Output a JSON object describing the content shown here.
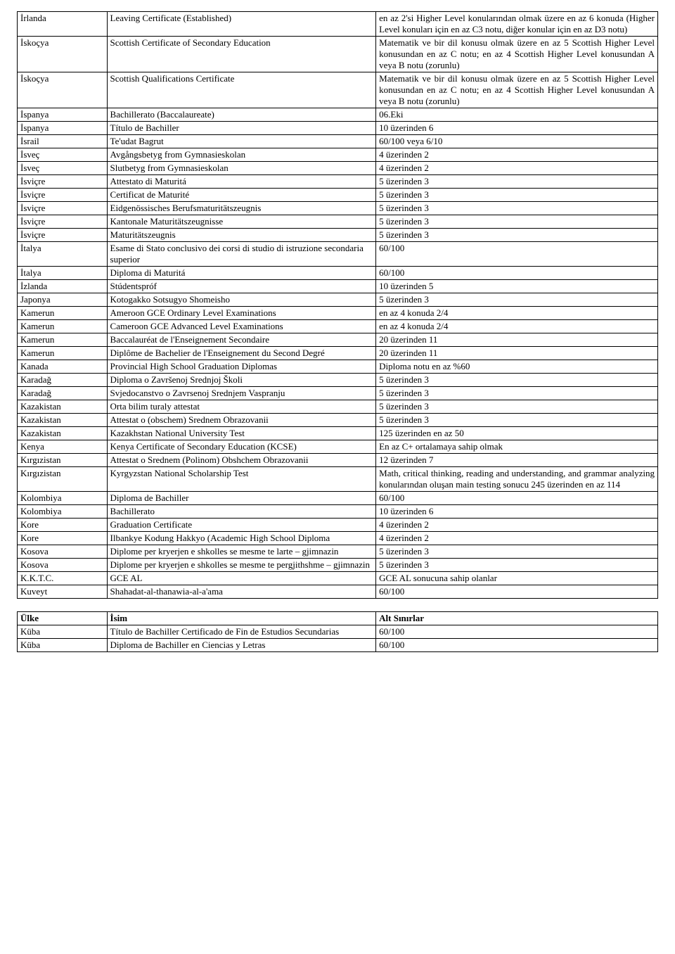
{
  "table1": {
    "rows": [
      {
        "country": "İrlanda",
        "name": "Leaving Certificate (Established)",
        "req": "en az 2'si Higher Level konularından olmak üzere en az 6 konuda (Higher Level konuları için en az C3 notu, diğer konular için en az D3 notu)",
        "just": true
      },
      {
        "country": "İskoçya",
        "name": "Scottish Certificate of Secondary Education",
        "req": "Matematik ve bir dil konusu olmak üzere en az 5 Scottish Higher Level konusundan en az C notu; en az 4 Scottish Higher Level konusundan A veya B notu (zorunlu)",
        "just": true
      },
      {
        "country": "İskoçya",
        "name": "Scottish Qualifications Certificate",
        "req": "Matematik ve bir dil konusu olmak üzere en az 5 Scottish Higher Level konusundan en az C notu; en az 4 Scottish Higher Level konusundan A veya B notu (zorunlu)",
        "just": true
      },
      {
        "country": "İspanya",
        "name": "Bachillerato (Baccalaureate)",
        "req": "06.Eki"
      },
      {
        "country": "İspanya",
        "name": "Título de Bachiller",
        "req": "10 üzerinden 6"
      },
      {
        "country": "İsrail",
        "name": "Te'udat Bagrut",
        "req": "60/100 veya 6/10"
      },
      {
        "country": "İsveç",
        "name": "Avgångsbetyg from Gymnasieskolan",
        "req": "4 üzerinden 2"
      },
      {
        "country": "İsveç",
        "name": "Slutbetyg from Gymnasieskolan",
        "req": "4 üzerinden 2"
      },
      {
        "country": "İsviçre",
        "name": "Attestato di Maturitá",
        "req": "5 üzerinden 3"
      },
      {
        "country": "İsviçre",
        "name": "Certificat de Maturité",
        "req": "5 üzerinden 3"
      },
      {
        "country": "İsviçre",
        "name": "Eidgenössisches Berufsmaturitätszeugnis",
        "req": "5 üzerinden 3"
      },
      {
        "country": "İsviçre",
        "name": "Kantonale Maturitätszeugnisse",
        "req": "5 üzerinden 3"
      },
      {
        "country": "İsviçre",
        "name": "Maturitätszeugnis",
        "req": "5 üzerinden 3"
      },
      {
        "country": "İtalya",
        "name": "Esame di Stato conclusivo dei corsi di studio di istruzione secondaria superior",
        "req": "60/100"
      },
      {
        "country": "İtalya",
        "name": "Diploma di Maturitá",
        "req": "60/100"
      },
      {
        "country": "İzlanda",
        "name": "Stúdentspróf",
        "req": "10 üzerinden 5"
      },
      {
        "country": "Japonya",
        "name": "Kotogakko Sotsugyo Shomeisho",
        "req": "5 üzerinden 3"
      },
      {
        "country": "Kamerun",
        "name": "Ameroon GCE Ordinary Level Examinations",
        "req": "en az 4 konuda 2/4"
      },
      {
        "country": "Kamerun",
        "name": "Cameroon GCE Advanced Level Examinations",
        "req": "en az 4 konuda 2/4"
      },
      {
        "country": "Kamerun",
        "name": "Baccalauréat de l'Enseignement Secondaire",
        "req": "20 üzerinden 11"
      },
      {
        "country": "Kamerun",
        "name": "Diplôme de Bachelier de l'Enseignement du Second Degré",
        "req": "20 üzerinden 11"
      },
      {
        "country": "Kanada",
        "name": "Provincial High School Graduation Diplomas",
        "req": "Diploma notu en az %60"
      },
      {
        "country": "Karadağ",
        "name": "Diploma o Završenoj Srednjoj Školi",
        "req": "5 üzerinden 3"
      },
      {
        "country": "Karadağ",
        "name": "Svjedocanstvo o Zavrsenoj Srednjem Vaspranju",
        "req": "5 üzerinden 3"
      },
      {
        "country": "Kazakistan",
        "name": "Orta bilim turaly attestat",
        "req": "5 üzerinden 3"
      },
      {
        "country": "Kazakistan",
        "name": "Attestat o (obschem) Srednem Obrazovanii",
        "req": "5 üzerinden 3"
      },
      {
        "country": "Kazakistan",
        "name": "Kazakhstan National University Test",
        "req": "125 üzerinden en az 50"
      },
      {
        "country": "Kenya",
        "name": "Kenya Certificate of Secondary Education (KCSE)",
        "req": "En az C+ ortalamaya sahip olmak"
      },
      {
        "country": "Kırgızistan",
        "name": "Attestat o Srednem (Polinom) Obshchem Obrazovanii",
        "req": "12 üzerinden 7"
      },
      {
        "country": "Kırgızistan",
        "name": "Kyrgyzstan National Scholarship Test",
        "req": " Math, critical thinking, reading and understanding, and grammar analyzing konularından oluşan main testing sonucu 245 üzerinden en az 114",
        "just": true
      },
      {
        "country": "Kolombiya",
        "name": "Diploma de Bachiller",
        "req": "60/100"
      },
      {
        "country": "Kolombiya",
        "name": "Bachillerato",
        "req": "10 üzerinden 6"
      },
      {
        "country": "Kore",
        "name": "Graduation Certificate",
        "req": "4 üzerinden 2"
      },
      {
        "country": "Kore",
        "name": "Ilbankye Kodung Hakkyo (Academic High School Diploma",
        "req": "4 üzerinden 2"
      },
      {
        "country": "Kosova",
        "name": "Diplome per kryerjen e shkolles se mesme te larte – gjimnazin",
        "req": "5 üzerinden 3"
      },
      {
        "country": "Kosova",
        "name": "Diplome per kryerjen e shkolles se mesme te pergjithshme – gjimnazin",
        "req": "5 üzerinden 3"
      },
      {
        "country": "K.K.T.C.",
        "name": "GCE AL",
        "req": "GCE AL sonucuna sahip olanlar"
      },
      {
        "country": "Kuveyt",
        "name": "Shahadat-al-thanawia-al-a'ama",
        "req": "60/100"
      }
    ]
  },
  "table2": {
    "header": {
      "country": "Ülke",
      "name": "İsim",
      "req": "Alt Sınırlar"
    },
    "rows": [
      {
        "country": "Küba",
        "name": "Título de Bachiller Certificado de Fin de Estudios Secundarias",
        "req": "60/100"
      },
      {
        "country": "Küba",
        "name": "Diploma de Bachiller en Ciencias y Letras",
        "req": "60/100"
      }
    ]
  }
}
